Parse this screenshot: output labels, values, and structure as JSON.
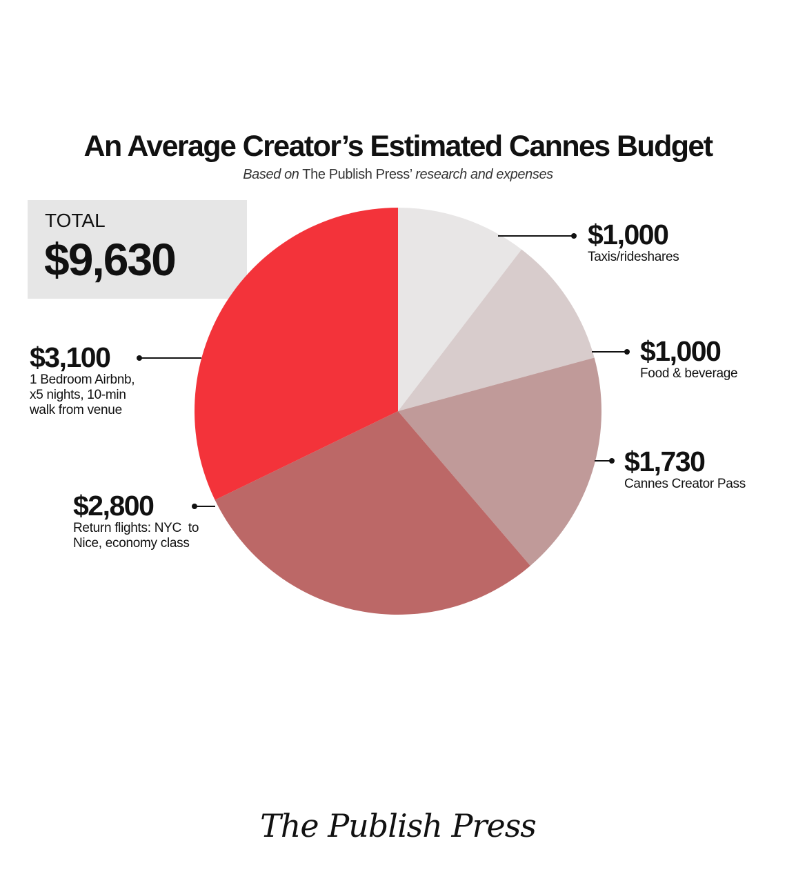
{
  "header": {
    "title": "An Average Creator’s Estimated Cannes Budget",
    "subtitle_prefix": "Based on",
    "subtitle_publisher": " The Publish Press’ ",
    "subtitle_suffix": "research and expenses"
  },
  "total": {
    "label": "TOTAL",
    "value": "$9,630"
  },
  "chart_data": {
    "type": "pie",
    "total": 9630,
    "slices": [
      {
        "label": "Taxis/rideshares",
        "value": 1000,
        "display": "$1,000",
        "color": "#e8e6e6"
      },
      {
        "label": "Food & beverage",
        "value": 1000,
        "display": "$1,000",
        "color": "#d8cccc"
      },
      {
        "label": "Cannes Creator Pass",
        "value": 1730,
        "display": "$1,730",
        "color": "#c09a99"
      },
      {
        "label": "Return flights: NYC to Nice, economy class",
        "value": 2800,
        "display": "$2,800",
        "color": "#bc6867"
      },
      {
        "label": "1 Bedroom Airbnb, x5 nights, 10-min walk from venue",
        "value": 3100,
        "display": "$3,100",
        "color": "#f3333a"
      }
    ]
  },
  "labels": {
    "taxis": {
      "amount": "$1,000",
      "line1": "Taxis/rideshares"
    },
    "food": {
      "amount": "$1,000",
      "line1": "Food & beverage"
    },
    "pass": {
      "amount": "$1,730",
      "line1": "Cannes Creator Pass"
    },
    "flights": {
      "amount": "$2,800",
      "line1": "Return flights: NYC  to",
      "line2": "Nice, economy class"
    },
    "airbnb": {
      "amount": "$3,100",
      "line1": "1 Bedroom Airbnb,",
      "line2": "x5 nights, 10-min",
      "line3": "walk from venue"
    }
  },
  "footer": {
    "brand": "The Publish Press"
  }
}
